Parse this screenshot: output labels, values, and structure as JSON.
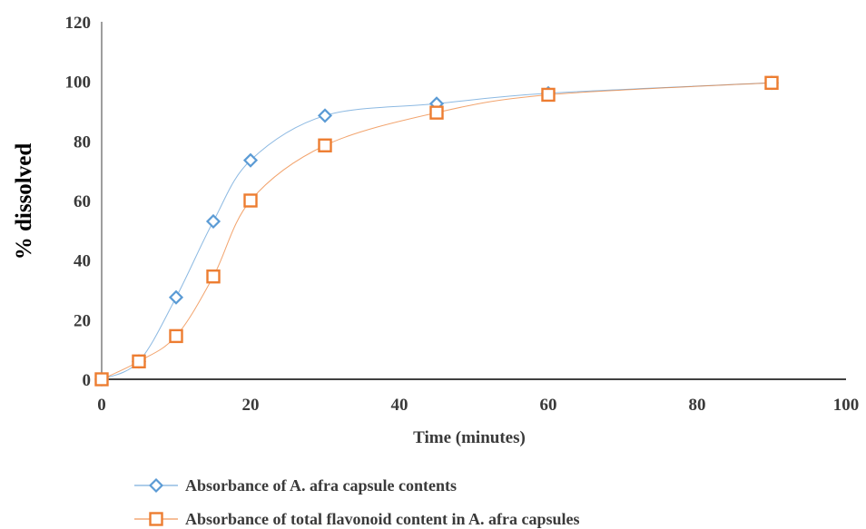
{
  "chart_data": {
    "type": "scatter",
    "xlabel": "Time (minutes)",
    "ylabel": "% dissolved",
    "xlim": [
      0,
      100
    ],
    "ylim": [
      0,
      120
    ],
    "xticks": [
      "0",
      "20",
      "40",
      "60",
      "80",
      "100"
    ],
    "yticks": [
      "0",
      "20",
      "40",
      "60",
      "80",
      "100",
      "120"
    ],
    "grid": false,
    "legend_position": "bottom",
    "series": [
      {
        "name": "Absorbance of A. afra capsule contents",
        "marker": "diamond",
        "color": "#5b9bd5",
        "x": [
          0,
          5,
          10,
          15,
          20,
          30,
          45,
          60,
          90
        ],
        "y": [
          0,
          6,
          27.5,
          53,
          73.5,
          88.5,
          92.5,
          96,
          99.5
        ]
      },
      {
        "name": "Absorbance of total flavonoid content in A. afra capsules",
        "marker": "square",
        "color": "#ed7d31",
        "x": [
          0,
          5,
          10,
          15,
          20,
          30,
          45,
          60,
          90
        ],
        "y": [
          0,
          6,
          14.5,
          34.5,
          60,
          78.5,
          89.5,
          95.5,
          99.5
        ]
      }
    ]
  }
}
